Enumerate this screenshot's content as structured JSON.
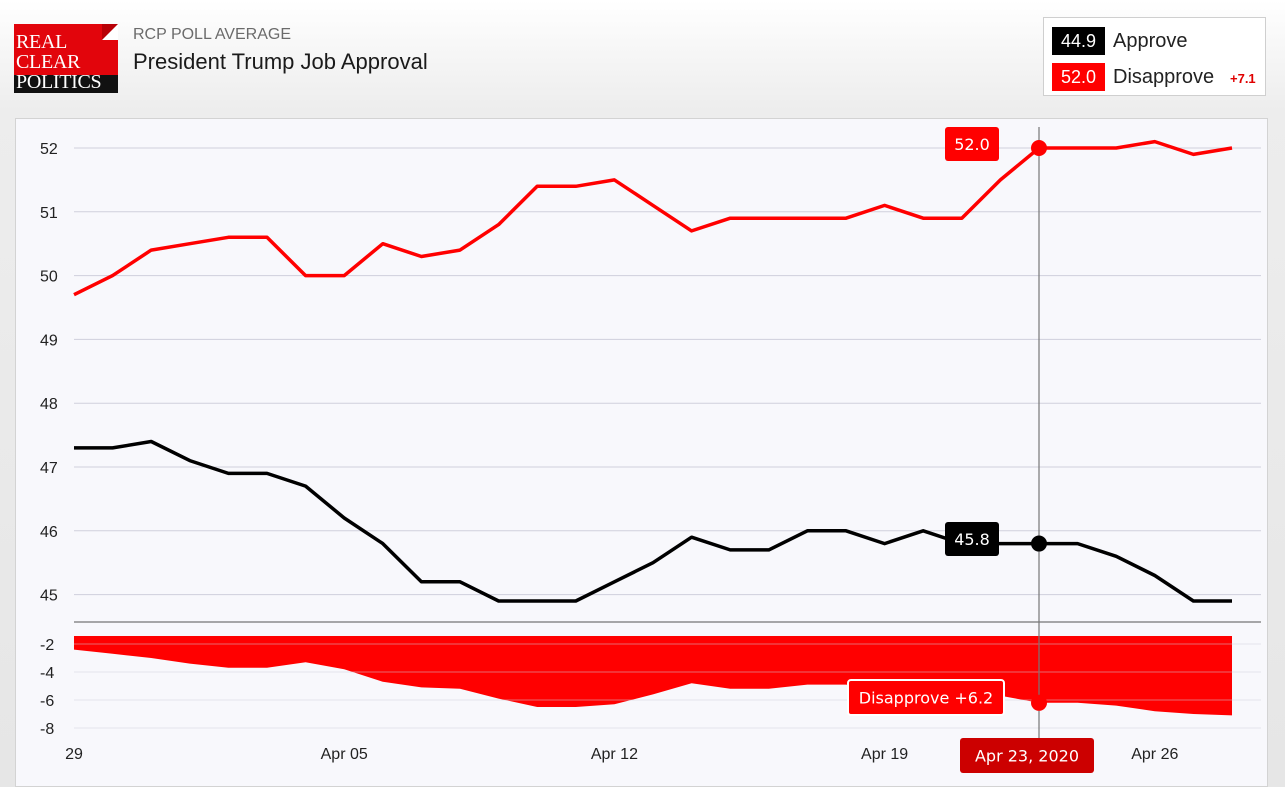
{
  "header": {
    "logo": {
      "line1": "REAL",
      "line2": "CLEAR",
      "line3": "POLITICS"
    },
    "supertitle": "RCP POLL AVERAGE",
    "title": "President Trump Job Approval"
  },
  "legend": {
    "approve": {
      "value": "44.9",
      "label": "Approve",
      "color": "#000000"
    },
    "disapprove": {
      "value": "52.0",
      "label": "Disapprove",
      "color": "#ff0000",
      "spread": "+7.1"
    }
  },
  "colors": {
    "approve": "#000000",
    "disapprove": "#ff0000",
    "spread_fill": "#ff0000",
    "tooltip_date": "#cc0000"
  },
  "chart_data": [
    {
      "type": "line",
      "x": [
        "Mar 29",
        "Mar 30",
        "Mar 31",
        "Apr 01",
        "Apr 02",
        "Apr 03",
        "Apr 04",
        "Apr 05",
        "Apr 06",
        "Apr 07",
        "Apr 08",
        "Apr 09",
        "Apr 10",
        "Apr 11",
        "Apr 12",
        "Apr 13",
        "Apr 14",
        "Apr 15",
        "Apr 16",
        "Apr 17",
        "Apr 18",
        "Apr 19",
        "Apr 20",
        "Apr 21",
        "Apr 22",
        "Apr 23",
        "Apr 24",
        "Apr 25",
        "Apr 26",
        "Apr 27",
        "Apr 28"
      ],
      "x_tick_labels": [
        "29",
        "Apr 05",
        "Apr 12",
        "Apr 19",
        "Apr 26"
      ],
      "series": [
        {
          "name": "Approve",
          "values": [
            47.3,
            47.3,
            47.4,
            47.1,
            46.9,
            46.9,
            46.7,
            46.2,
            45.8,
            45.2,
            45.2,
            44.9,
            44.9,
            44.9,
            45.2,
            45.5,
            45.9,
            45.7,
            45.7,
            46.0,
            46.0,
            45.8,
            46.0,
            45.8,
            45.8,
            45.8,
            45.8,
            45.6,
            45.3,
            44.9,
            44.9
          ]
        },
        {
          "name": "Disapprove",
          "values": [
            49.7,
            50.0,
            50.4,
            50.5,
            50.6,
            50.6,
            50.0,
            50.0,
            50.5,
            50.3,
            50.4,
            50.8,
            51.4,
            51.4,
            51.5,
            51.1,
            50.7,
            50.9,
            50.9,
            50.9,
            50.9,
            51.1,
            50.9,
            50.9,
            51.5,
            52.0,
            52.0,
            52.0,
            52.1,
            51.9,
            52.0
          ]
        }
      ],
      "y_ticks": [
        45,
        46,
        47,
        48,
        49,
        50,
        51,
        52
      ],
      "ylim": [
        44.55,
        52.35
      ],
      "grid": true
    },
    {
      "type": "area",
      "x": [
        "Mar 29",
        "Mar 30",
        "Mar 31",
        "Apr 01",
        "Apr 02",
        "Apr 03",
        "Apr 04",
        "Apr 05",
        "Apr 06",
        "Apr 07",
        "Apr 08",
        "Apr 09",
        "Apr 10",
        "Apr 11",
        "Apr 12",
        "Apr 13",
        "Apr 14",
        "Apr 15",
        "Apr 16",
        "Apr 17",
        "Apr 18",
        "Apr 19",
        "Apr 20",
        "Apr 21",
        "Apr 22",
        "Apr 23",
        "Apr 24",
        "Apr 25",
        "Apr 26",
        "Apr 27",
        "Apr 28"
      ],
      "series": [
        {
          "name": "Disapprove",
          "values": [
            -2.4,
            -2.7,
            -3.0,
            -3.4,
            -3.7,
            -3.7,
            -3.3,
            -3.8,
            -4.7,
            -5.1,
            -5.2,
            -5.9,
            -6.5,
            -6.5,
            -6.3,
            -5.6,
            -4.8,
            -5.2,
            -5.2,
            -4.9,
            -4.9,
            -5.3,
            -4.9,
            -5.1,
            -5.7,
            -6.2,
            -6.2,
            -6.4,
            -6.8,
            -7.0,
            -7.1
          ]
        }
      ],
      "y_ticks": [
        -2,
        -4,
        -6,
        -8
      ],
      "ylim": [
        -9,
        -0.9
      ],
      "grid": true
    }
  ],
  "tooltip": {
    "date": "Apr 23, 2020",
    "index": 25,
    "approve_value": "45.8",
    "disapprove_value": "52.0",
    "spread_text": "Disapprove +6.2"
  }
}
